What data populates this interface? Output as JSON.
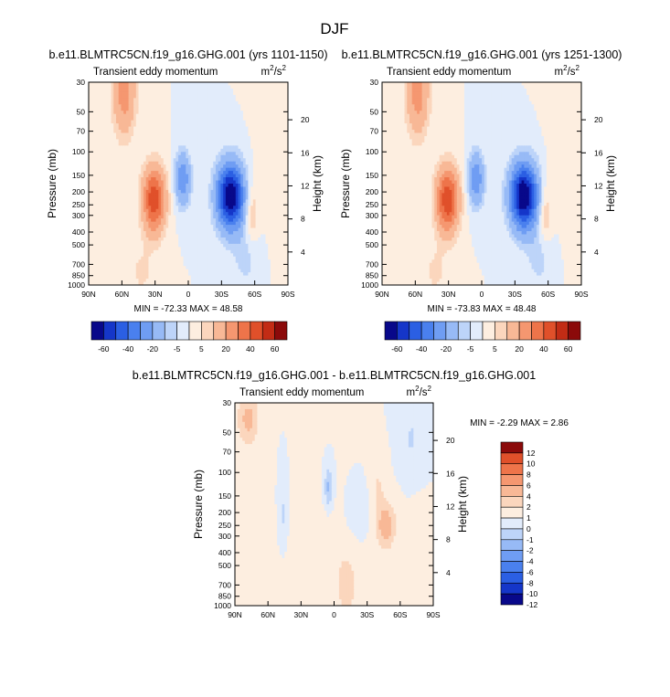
{
  "figure": {
    "title": "DJF"
  },
  "colors": {
    "levels_main": [
      "-60",
      "-40",
      "-20",
      "-5",
      "5",
      "20",
      "40",
      "60"
    ],
    "palette_main": [
      "#08088a",
      "#1536c9",
      "#2b5fe3",
      "#4a80ee",
      "#6f9df3",
      "#97baf6",
      "#bdd4f9",
      "#e2ecfb",
      "#fdeee0",
      "#fbd6bd",
      "#f8b896",
      "#f59770",
      "#ee744a",
      "#e0502a",
      "#c22c15",
      "#8b0a0a"
    ],
    "palette_diff": [
      "#08088a",
      "#1536c9",
      "#2b5fe3",
      "#4a80ee",
      "#6f9df3",
      "#97baf6",
      "#bdd4f9",
      "#e2ecfb",
      "#fdeee0",
      "#fbd6bd",
      "#f8b896",
      "#f59770",
      "#ee744a",
      "#e0502a",
      "#8b0a0a"
    ]
  },
  "chart_data": [
    {
      "type": "heatmap",
      "title": "b.e11.BLMTRC5CN.f19_g16.GHG.001 (yrs 1101-1150)",
      "subtitle_left": "Transient eddy momentum",
      "subtitle_right_base": "m",
      "subtitle_right_sup1": "2",
      "subtitle_right_mid": "/s",
      "subtitle_right_sup2": "2",
      "ylabel": "Pressure (mb)",
      "ylabel_right": "Height (km)",
      "x_ticks": [
        "90N",
        "60N",
        "30N",
        "0",
        "30S",
        "60S",
        "90S"
      ],
      "y_ticks": [
        "30",
        "50",
        "70",
        "100",
        "150",
        "200",
        "250",
        "300",
        "400",
        "500",
        "700",
        "850",
        "1000"
      ],
      "y_right_ticks": [
        "20",
        "16",
        "12",
        "8",
        "4"
      ],
      "stats": "MIN = -72.33  MAX =  48.58",
      "min": -72.33,
      "max": 48.58,
      "levels": [
        -60,
        -50,
        -40,
        -30,
        -20,
        -10,
        -5,
        0,
        5,
        10,
        20,
        30,
        40,
        50,
        60
      ],
      "colorbar_labels": [
        "-60",
        "-40",
        "-20",
        "-5",
        "5",
        "20",
        "40",
        "60"
      ]
    },
    {
      "type": "heatmap",
      "title": "b.e11.BLMTRC5CN.f19_g16.GHG.001 (yrs 1251-1300)",
      "subtitle_left": "Transient eddy momentum",
      "subtitle_right_base": "m",
      "subtitle_right_sup1": "2",
      "subtitle_right_mid": "/s",
      "subtitle_right_sup2": "2",
      "ylabel": "Pressure (mb)",
      "ylabel_right": "Height (km)",
      "x_ticks": [
        "90N",
        "60N",
        "30N",
        "0",
        "30S",
        "60S",
        "90S"
      ],
      "y_ticks": [
        "30",
        "50",
        "70",
        "100",
        "150",
        "200",
        "250",
        "300",
        "400",
        "500",
        "700",
        "850",
        "1000"
      ],
      "y_right_ticks": [
        "20",
        "16",
        "12",
        "8",
        "4"
      ],
      "stats": "MIN = -73.83  MAX =  48.48",
      "min": -73.83,
      "max": 48.48,
      "levels": [
        -60,
        -50,
        -40,
        -30,
        -20,
        -10,
        -5,
        0,
        5,
        10,
        20,
        30,
        40,
        50,
        60
      ],
      "colorbar_labels": [
        "-60",
        "-40",
        "-20",
        "-5",
        "5",
        "20",
        "40",
        "60"
      ]
    },
    {
      "type": "heatmap",
      "title": "b.e11.BLMTRC5CN.f19_g16.GHG.001 - b.e11.BLMTRC5CN.f19_g16.GHG.001",
      "subtitle_left": "Transient eddy momentum",
      "subtitle_right_base": "m",
      "subtitle_right_sup1": "2",
      "subtitle_right_mid": "/s",
      "subtitle_right_sup2": "2",
      "ylabel": "Pressure (mb)",
      "ylabel_right": "Height (km)",
      "x_ticks": [
        "90N",
        "60N",
        "30N",
        "0",
        "30S",
        "60S",
        "90S"
      ],
      "y_ticks": [
        "30",
        "50",
        "70",
        "100",
        "150",
        "200",
        "250",
        "300",
        "400",
        "500",
        "700",
        "850",
        "1000"
      ],
      "y_right_ticks": [
        "20",
        "16",
        "12",
        "8",
        "4"
      ],
      "stats": "MIN = -2.29  MAX =  2.86",
      "min": -2.29,
      "max": 2.86,
      "levels": [
        -12,
        -10,
        -8,
        -6,
        -4,
        -2,
        -1,
        0,
        1,
        2,
        4,
        6,
        8,
        10,
        12
      ],
      "colorbar_labels": [
        "12",
        "10",
        "8",
        "6",
        "4",
        "2",
        "1",
        "0",
        "-1",
        "-2",
        "-4",
        "-6",
        "-8",
        "-10",
        "-12"
      ]
    }
  ]
}
